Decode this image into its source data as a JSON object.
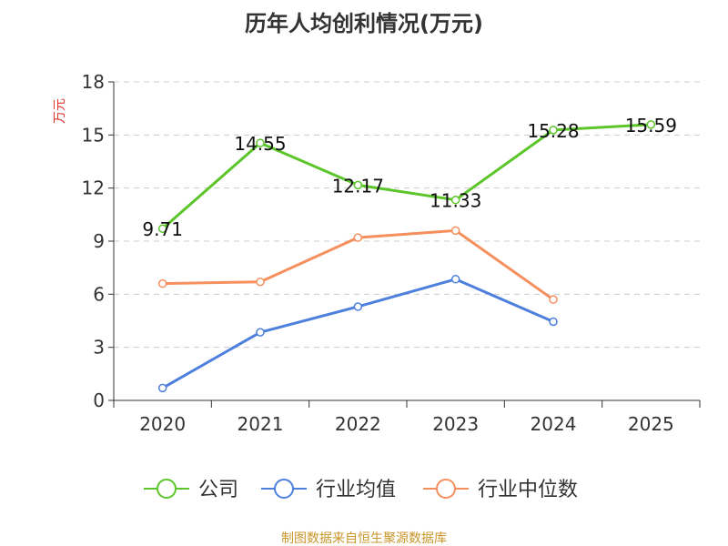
{
  "chart_data": {
    "type": "line",
    "title": "历年人均创利情况(万元)",
    "ylabel": "万元",
    "categories": [
      "2020",
      "2021",
      "2022",
      "2023",
      "2024",
      "2025"
    ],
    "ylim": [
      0,
      18
    ],
    "yticks": [
      0,
      3,
      6,
      9,
      12,
      15,
      18
    ],
    "grid": true,
    "legend_position": "bottom",
    "series": [
      {
        "name": "公司",
        "color": "#5bc52a",
        "values": [
          9.71,
          14.55,
          12.17,
          11.33,
          15.28,
          15.59
        ],
        "labels": [
          "9.71",
          "14.55",
          "12.17",
          "11.33",
          "15.28",
          "15.59"
        ]
      },
      {
        "name": "行业均值",
        "color": "#4d7fdc",
        "values": [
          0.7,
          3.85,
          5.3,
          6.85,
          4.45,
          null
        ]
      },
      {
        "name": "行业中位数",
        "color": "#f5905e",
        "values": [
          6.6,
          6.7,
          9.2,
          9.6,
          5.7,
          null
        ]
      }
    ],
    "source": "制图数据来自恒生聚源数据库"
  }
}
